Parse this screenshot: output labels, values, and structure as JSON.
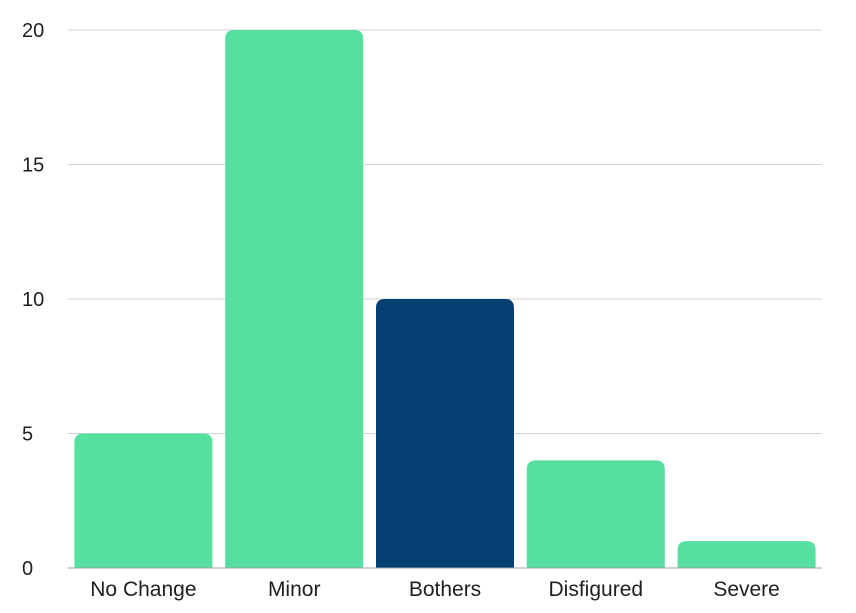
{
  "chart_data": {
    "type": "bar",
    "title": "",
    "xlabel": "",
    "ylabel": "",
    "categories": [
      "No Change",
      "Minor",
      "Bothers",
      "Disfigured",
      "Severe"
    ],
    "values": [
      5,
      20,
      10,
      4,
      1
    ],
    "bar_colors": [
      "#55e0a0",
      "#55e0a0",
      "#033f70",
      "#55e0a0",
      "#55e0a0"
    ],
    "ylim": [
      0,
      20
    ],
    "yticks": [
      0,
      5,
      10,
      15,
      20
    ],
    "grid": true,
    "legend": "none"
  }
}
